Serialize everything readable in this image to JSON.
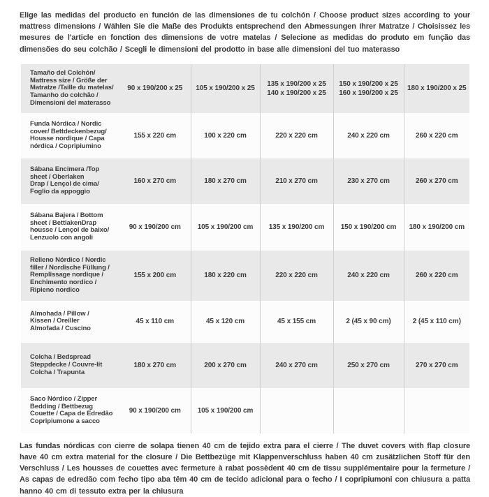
{
  "page": {
    "header_text": "Elige las medidas del producto en función de las dimensiones de tu colchón / Choose product sizes according to your mattress dimensions / Wählen Sie die Maße des Produkts entsprechend den Abmessungen Ihrer Matratze / Choisissez les mesures de l'article en fonction des dimensions de votre matelas / Selecione as medidas do produto em função das dimensões do seu colchão / Scegli le dimensioni del prodotto in base alle dimensioni del tuo materasso",
    "footer_text": "Las fundas nórdicas con cierre de solapa tienen 40 cm de tejido extra para el cierre  / The duvet covers with flap closure have 40 cm extra material for the closure / Die Bettbezüge mit Klappenverschluss haben 40 cm zusätzlichen Stoff für den Verschluss / Les housses de couettes avec fermeture à rabat possèdent 40 cm de tissu supplémentaire pour la fermeture / As capas de edredão com fecho tipo aba têm 40 cm de tecido adicional para o fecho / I copripiumoni con chiusura a patta hanno 40 cm di tessuto extra per la chiusura"
  },
  "colors": {
    "stripe": "#e9e9e9",
    "row_white": "#fcfcfc",
    "divider": "#cfcfcf",
    "text": "#3b3b3b",
    "background": "#ffffff"
  },
  "table": {
    "rows": [
      {
        "label": "Tamaño del Colchón/\nMattress size / Größe der\nMatratze /Taille du matelas/\nTamanho do colchão /\nDimensioni del materasso",
        "cells": [
          "90 x 190/200 x 25",
          "105 x 190/200 x 25",
          "135 x 190/200 x 25\n140 x 190/200 x 25",
          "150 x 190/200 x 25\n160 x 190/200 x 25",
          "180 x 190/200 x 25"
        ]
      },
      {
        "label": "Funda Nórdica /  Nordic\ncover/ Bettdeckenbezug/\nHousse nordique  / Capa\nnórdica / Copripiumino",
        "cells": [
          "155 x 220 cm",
          "100 x 220 cm",
          "220 x 220 cm",
          "240 x 220 cm",
          "260 x 220 cm"
        ]
      },
      {
        "label": "Sábana Encimera /Top\nsheet / Oberlaken\nDrap / Lençol de cima/\nFoglio da appoggio",
        "cells": [
          "160 x 270 cm",
          "180 x 270 cm",
          "210 x 270 cm",
          "230 x 270 cm",
          "260 x 270 cm"
        ]
      },
      {
        "label": "Sábana Bajera / Bottom\nsheet / BettlakenDrap\nhousse / Lençol de baixo/\nLenzuolo con angoli",
        "cells": [
          "90 x 190/200 cm",
          "105 x 190/200 cm",
          "135 x 190/200 cm",
          "150 x 190/200 cm",
          "180 x 190/200 cm"
        ]
      },
      {
        "label": "Relleno Nórdico / Nordic\nfiller / Nordische Füllung /\nRemplissage nordique /\nEnchimento nordico /\nRipieno nordico",
        "cells": [
          "155 x 200 cm",
          "180 x 220 cm",
          "220 x 220 cm",
          "240 x 220 cm",
          "260 x 220 cm"
        ]
      },
      {
        "label": "Almohada  / Pillow /\nKissen / Oreiller\nAlmofada / Cuscino",
        "cells": [
          "45 x 110 cm",
          "45 x 120 cm",
          "45 x 155 cm",
          "2 (45 x 90 cm)",
          "2 (45 x 110 cm)"
        ]
      },
      {
        "label": "Colcha / Bedspread\nSteppdecke / Couvre-lit\nColcha / Trapunta",
        "cells": [
          "180 x 270 cm",
          "200 x 270 cm",
          "240 x 270 cm",
          "250 x 270 cm",
          "270 x 270 cm"
        ]
      },
      {
        "label": "Saco Nórdico / Zipper\nBedding / Bettbezug\nCouette  / Capa de Edredão\nCopripiumone a sacco",
        "cells": [
          "90 x 190/200 cm",
          "105 x 190/200 cm",
          "",
          "",
          ""
        ]
      }
    ]
  }
}
